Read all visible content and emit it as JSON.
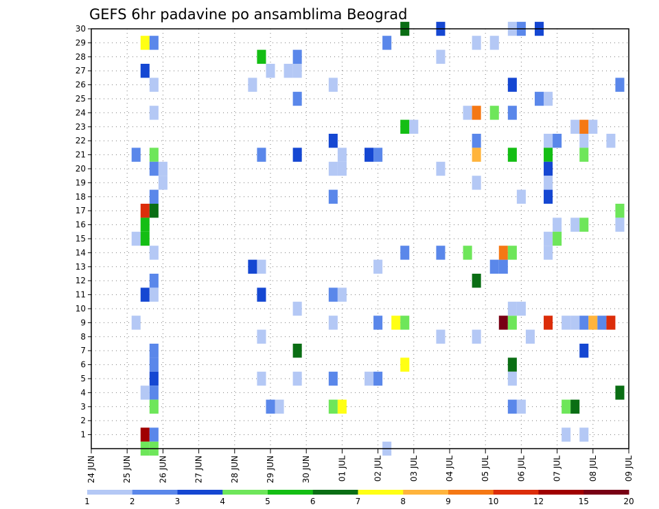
{
  "chart_data": {
    "type": "heatmap",
    "title": "GEFS 6hr padavine po ansamblima Beograd",
    "y_labels": [
      "1",
      "2",
      "3",
      "4",
      "5",
      "6",
      "7",
      "8",
      "9",
      "10",
      "11",
      "12",
      "13",
      "14",
      "15",
      "16",
      "17",
      "18",
      "19",
      "20",
      "21",
      "22",
      "23",
      "24",
      "25",
      "26",
      "27",
      "28",
      "29",
      "30"
    ],
    "x_labels": [
      "24 JUN",
      "25 JUN",
      "26 JUN",
      "27 JUN",
      "28 JUN",
      "29 JUN",
      "30 JUN",
      "01 JUL",
      "02 JUL",
      "03 JUL",
      "04 JUL",
      "05 JUL",
      "06 JUL",
      "07 JUL",
      "08 JUL",
      "09 JUL"
    ],
    "x_range": [
      0,
      15
    ],
    "y_range": [
      0,
      30
    ],
    "grid": true,
    "colorbar": {
      "labels": [
        "1",
        "2",
        "3",
        "4",
        "5",
        "6",
        "7",
        "8",
        "9",
        "10",
        "12",
        "15",
        "20"
      ],
      "colors": [
        "#b4c8f5",
        "#5a87ea",
        "#1547d2",
        "#6ee65a",
        "#14be14",
        "#0a6e14",
        "#ffff14",
        "#ffb43c",
        "#f57814",
        "#dc2d0a",
        "#a00000",
        "#780014"
      ]
    },
    "cells": [
      [
        1.5,
        29,
        6
      ],
      [
        1.75,
        29,
        1
      ],
      [
        1.5,
        27,
        2
      ],
      [
        1.75,
        26,
        0
      ],
      [
        1.75,
        24,
        0
      ],
      [
        1.25,
        21,
        1
      ],
      [
        1.75,
        21,
        3
      ],
      [
        1.75,
        20,
        1
      ],
      [
        2,
        20,
        0
      ],
      [
        2,
        19,
        0
      ],
      [
        1.75,
        18,
        1
      ],
      [
        1.5,
        17,
        9
      ],
      [
        1.75,
        17,
        5
      ],
      [
        1.5,
        16,
        4
      ],
      [
        1.25,
        15,
        0
      ],
      [
        1.5,
        15,
        4
      ],
      [
        1.75,
        14,
        0
      ],
      [
        1.75,
        12,
        1
      ],
      [
        1.5,
        11,
        2
      ],
      [
        1.75,
        11,
        0
      ],
      [
        1.25,
        9,
        0
      ],
      [
        1.75,
        7,
        1
      ],
      [
        1.75,
        6,
        1
      ],
      [
        1.75,
        5,
        2
      ],
      [
        1.75,
        4,
        1
      ],
      [
        1.5,
        4,
        0
      ],
      [
        1.75,
        3,
        3
      ],
      [
        1.5,
        1,
        10
      ],
      [
        1.75,
        1,
        1
      ],
      [
        1.5,
        0,
        3
      ],
      [
        1.75,
        0,
        3
      ],
      [
        4.75,
        28,
        4
      ],
      [
        5,
        27,
        0
      ],
      [
        4.5,
        26,
        0
      ],
      [
        4.75,
        21,
        1
      ],
      [
        4.5,
        13,
        2
      ],
      [
        4.75,
        13,
        0
      ],
      [
        4.75,
        11,
        2
      ],
      [
        4.75,
        8,
        0
      ],
      [
        4.75,
        5,
        0
      ],
      [
        5,
        3,
        1
      ],
      [
        5.25,
        3,
        0
      ],
      [
        5.75,
        28,
        1
      ],
      [
        5.5,
        27,
        0
      ],
      [
        5.75,
        27,
        0
      ],
      [
        5.75,
        25,
        1
      ],
      [
        5.75,
        21,
        2
      ],
      [
        5.75,
        10,
        0
      ],
      [
        5.75,
        7,
        5
      ],
      [
        5.75,
        5,
        0
      ],
      [
        6.75,
        26,
        0
      ],
      [
        6.75,
        22,
        2
      ],
      [
        7,
        21,
        0
      ],
      [
        6.75,
        20,
        0
      ],
      [
        7,
        20,
        0
      ],
      [
        6.75,
        18,
        1
      ],
      [
        6.75,
        11,
        1
      ],
      [
        7,
        11,
        0
      ],
      [
        6.75,
        9,
        0
      ],
      [
        6.75,
        5,
        1
      ],
      [
        6.75,
        3,
        3
      ],
      [
        7,
        3,
        6
      ],
      [
        8.25,
        29,
        1
      ],
      [
        7.75,
        21,
        2
      ],
      [
        8,
        21,
        1
      ],
      [
        8,
        13,
        0
      ],
      [
        8,
        9,
        1
      ],
      [
        7.75,
        5,
        0
      ],
      [
        8,
        5,
        1
      ],
      [
        8.25,
        0,
        0
      ],
      [
        8.75,
        30,
        5
      ],
      [
        8.75,
        23,
        4
      ],
      [
        9,
        23,
        0
      ],
      [
        8.75,
        14,
        1
      ],
      [
        8.5,
        9,
        6
      ],
      [
        8.75,
        9,
        3
      ],
      [
        8.75,
        6,
        6
      ],
      [
        9.75,
        30,
        2
      ],
      [
        9.75,
        28,
        0
      ],
      [
        9.75,
        20,
        0
      ],
      [
        9.75,
        14,
        1
      ],
      [
        9.75,
        8,
        0
      ],
      [
        10.75,
        29,
        0
      ],
      [
        10.5,
        24,
        0
      ],
      [
        10.75,
        24,
        8
      ],
      [
        10.75,
        22,
        1
      ],
      [
        10.75,
        21,
        7
      ],
      [
        10.75,
        19,
        0
      ],
      [
        10.5,
        14,
        3
      ],
      [
        10.75,
        12,
        5
      ],
      [
        10.75,
        8,
        0
      ],
      [
        11.25,
        29,
        0
      ],
      [
        11.25,
        24,
        3
      ],
      [
        11.25,
        13,
        1
      ],
      [
        11.5,
        13,
        1
      ],
      [
        11.5,
        14,
        8
      ],
      [
        11.75,
        14,
        3
      ],
      [
        11.5,
        9,
        11
      ],
      [
        11.75,
        9,
        3
      ],
      [
        11.75,
        30,
        0
      ],
      [
        12,
        30,
        1
      ],
      [
        11.75,
        26,
        2
      ],
      [
        11.75,
        24,
        1
      ],
      [
        11.75,
        21,
        4
      ],
      [
        12,
        18,
        0
      ],
      [
        11.75,
        10,
        0
      ],
      [
        12,
        10,
        0
      ],
      [
        12.25,
        8,
        0
      ],
      [
        11.75,
        6,
        5
      ],
      [
        11.75,
        5,
        0
      ],
      [
        11.75,
        3,
        1
      ],
      [
        12,
        3,
        0
      ],
      [
        12.5,
        30,
        2
      ],
      [
        12.5,
        25,
        1
      ],
      [
        12.75,
        25,
        0
      ],
      [
        12.75,
        22,
        0
      ],
      [
        13,
        22,
        1
      ],
      [
        12.75,
        21,
        4
      ],
      [
        12.75,
        20,
        2
      ],
      [
        12.75,
        19,
        0
      ],
      [
        12.75,
        18,
        2
      ],
      [
        13,
        16,
        0
      ],
      [
        12.75,
        15,
        0
      ],
      [
        13,
        15,
        3
      ],
      [
        12.75,
        14,
        0
      ],
      [
        12.75,
        9,
        9
      ],
      [
        13.25,
        9,
        0
      ],
      [
        13.5,
        9,
        0
      ],
      [
        13.25,
        3,
        3
      ],
      [
        13.5,
        3,
        5
      ],
      [
        13.25,
        1,
        0
      ],
      [
        13.5,
        23,
        0
      ],
      [
        13.75,
        23,
        8
      ],
      [
        14,
        23,
        0
      ],
      [
        13.75,
        22,
        0
      ],
      [
        13.75,
        21,
        3
      ],
      [
        13.5,
        16,
        0
      ],
      [
        13.75,
        16,
        3
      ],
      [
        13.75,
        9,
        1
      ],
      [
        14,
        9,
        7
      ],
      [
        14.25,
        9,
        1
      ],
      [
        14.5,
        9,
        9
      ],
      [
        13.75,
        7,
        2
      ],
      [
        13.75,
        1,
        0
      ],
      [
        14.5,
        22,
        0
      ],
      [
        14.75,
        26,
        1
      ],
      [
        14.75,
        17,
        3
      ],
      [
        14.75,
        16,
        0
      ],
      [
        14.75,
        4,
        5
      ]
    ]
  }
}
